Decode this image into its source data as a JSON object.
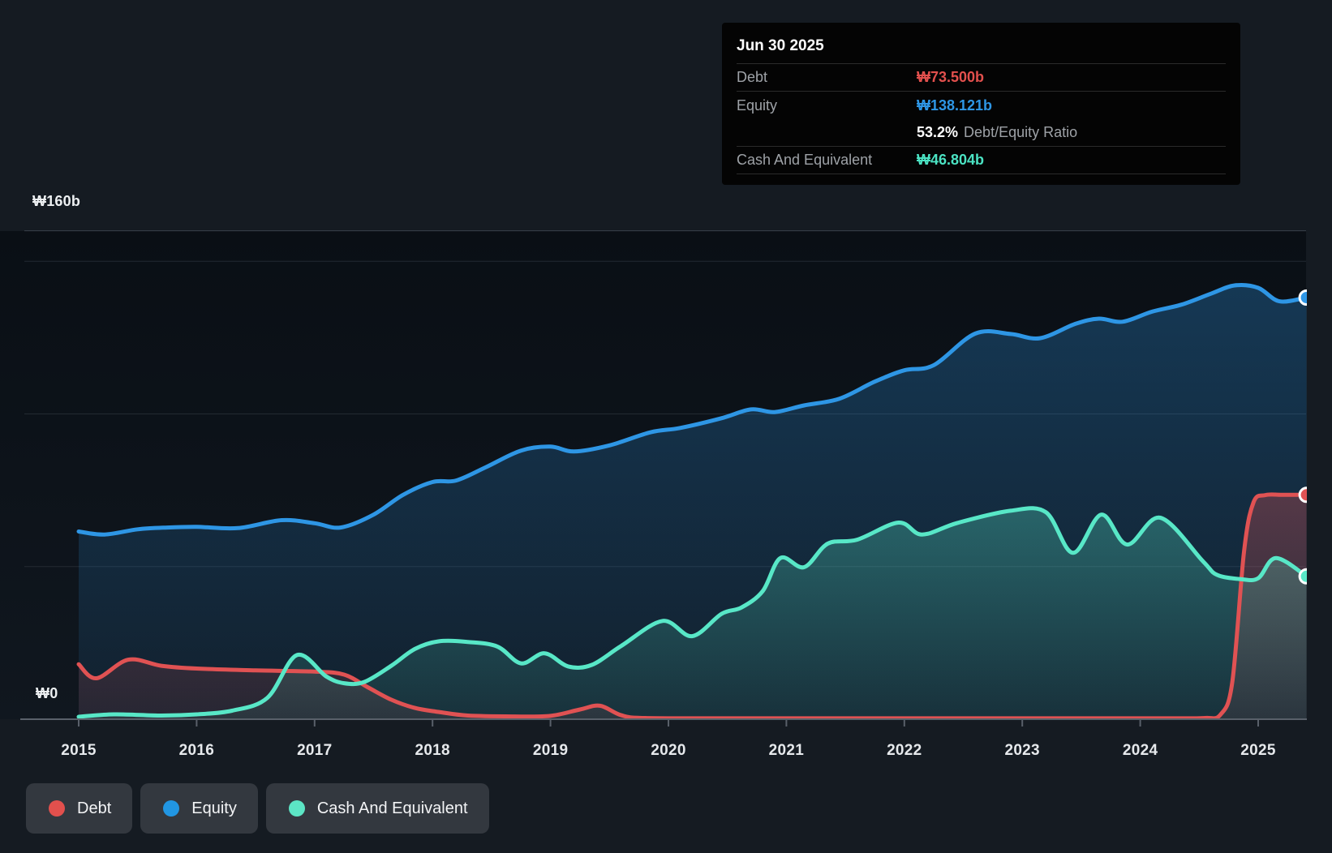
{
  "tooltip": {
    "date": "Jun 30 2025",
    "rows": [
      {
        "label": "Debt",
        "value": "₩73.500b",
        "color": "#E2504D",
        "suffix": "",
        "divided": true
      },
      {
        "label": "Equity",
        "value": "₩138.121b",
        "color": "#2E96E5",
        "suffix": "",
        "divided": false
      },
      {
        "label": "",
        "value": "53.2%",
        "color": "#FFFFFF",
        "suffix": "Debt/Equity Ratio",
        "divided": true
      },
      {
        "label": "Cash And Equivalent",
        "value": "₩46.804b",
        "color": "#4BE3C3",
        "suffix": "",
        "divided": true
      }
    ]
  },
  "y_axis": {
    "top_label": "₩160b",
    "zero_label": "₩0"
  },
  "x_axis": {
    "years": [
      "2015",
      "2016",
      "2017",
      "2018",
      "2019",
      "2020",
      "2021",
      "2022",
      "2023",
      "2024",
      "2025"
    ]
  },
  "legend": [
    {
      "label": "Debt",
      "color": "#E2504D"
    },
    {
      "label": "Equity",
      "color": "#2196E3"
    },
    {
      "label": "Cash And Equivalent",
      "color": "#5CE5C5"
    }
  ],
  "chart_data": {
    "type": "area",
    "title": "Debt to Equity History and Analysis",
    "unit": "billions KRW (₩b)",
    "x_range": [
      2015,
      2025.41
    ],
    "ylim": [
      0,
      160
    ],
    "y_gridlines_b": [
      160,
      150,
      100,
      50,
      0
    ],
    "grid": true,
    "legend_position": "bottom-left",
    "as_of": {
      "date": "Jun 30 2025",
      "debt_b": 73.5,
      "equity_b": 138.121,
      "debt_equity_ratio_pct": 53.2,
      "cash_b": 46.804
    },
    "series": [
      {
        "name": "Equity",
        "color": "#2E96E5",
        "points": [
          [
            2015.0,
            61.5
          ],
          [
            2015.22,
            60.5
          ],
          [
            2015.5,
            62.2
          ],
          [
            2015.75,
            62.8
          ],
          [
            2016.0,
            63.0
          ],
          [
            2016.35,
            62.6
          ],
          [
            2016.72,
            65.2
          ],
          [
            2017.0,
            64.2
          ],
          [
            2017.22,
            62.8
          ],
          [
            2017.5,
            67.0
          ],
          [
            2017.75,
            73.5
          ],
          [
            2018.0,
            77.7
          ],
          [
            2018.2,
            78.2
          ],
          [
            2018.45,
            82.5
          ],
          [
            2018.75,
            88.0
          ],
          [
            2019.0,
            89.3
          ],
          [
            2019.2,
            87.7
          ],
          [
            2019.5,
            89.7
          ],
          [
            2019.85,
            94.0
          ],
          [
            2020.1,
            95.4
          ],
          [
            2020.45,
            98.6
          ],
          [
            2020.7,
            101.5
          ],
          [
            2020.9,
            100.6
          ],
          [
            2021.15,
            102.8
          ],
          [
            2021.45,
            105.0
          ],
          [
            2021.75,
            110.6
          ],
          [
            2022.0,
            114.3
          ],
          [
            2022.25,
            116.0
          ],
          [
            2022.6,
            126.3
          ],
          [
            2022.9,
            126.2
          ],
          [
            2023.15,
            124.8
          ],
          [
            2023.45,
            129.5
          ],
          [
            2023.65,
            131.2
          ],
          [
            2023.85,
            130.2
          ],
          [
            2024.1,
            133.5
          ],
          [
            2024.35,
            135.8
          ],
          [
            2024.6,
            139.4
          ],
          [
            2024.8,
            142.1
          ],
          [
            2025.0,
            141.3
          ],
          [
            2025.18,
            136.9
          ],
          [
            2025.41,
            138.121
          ]
        ]
      },
      {
        "name": "Debt",
        "color": "#E05253",
        "points": [
          [
            2015.0,
            18.0
          ],
          [
            2015.15,
            13.4
          ],
          [
            2015.42,
            19.5
          ],
          [
            2015.7,
            17.5
          ],
          [
            2016.0,
            16.6
          ],
          [
            2016.5,
            16.0
          ],
          [
            2017.0,
            15.6
          ],
          [
            2017.25,
            14.6
          ],
          [
            2017.45,
            10.5
          ],
          [
            2017.65,
            6.4
          ],
          [
            2017.85,
            3.7
          ],
          [
            2018.05,
            2.4
          ],
          [
            2018.3,
            1.2
          ],
          [
            2018.7,
            0.9
          ],
          [
            2019.0,
            1.1
          ],
          [
            2019.25,
            3.2
          ],
          [
            2019.42,
            4.4
          ],
          [
            2019.6,
            1.3
          ],
          [
            2019.8,
            0.4
          ],
          [
            2020.5,
            0.3
          ],
          [
            2021.5,
            0.3
          ],
          [
            2022.5,
            0.3
          ],
          [
            2023.5,
            0.3
          ],
          [
            2024.3,
            0.3
          ],
          [
            2024.55,
            0.4
          ],
          [
            2024.68,
            1.5
          ],
          [
            2024.78,
            12.0
          ],
          [
            2024.88,
            55.0
          ],
          [
            2024.96,
            71.0
          ],
          [
            2025.06,
            73.4
          ],
          [
            2025.2,
            73.5
          ],
          [
            2025.41,
            73.5
          ]
        ]
      },
      {
        "name": "Cash And Equivalent",
        "color": "#58E7C7",
        "points": [
          [
            2015.0,
            0.8
          ],
          [
            2015.3,
            1.6
          ],
          [
            2015.7,
            1.2
          ],
          [
            2016.0,
            1.6
          ],
          [
            2016.3,
            2.8
          ],
          [
            2016.6,
            7.0
          ],
          [
            2016.85,
            21.0
          ],
          [
            2017.1,
            14.0
          ],
          [
            2017.25,
            11.8
          ],
          [
            2017.42,
            12.2
          ],
          [
            2017.65,
            17.5
          ],
          [
            2017.85,
            23.0
          ],
          [
            2018.05,
            25.5
          ],
          [
            2018.3,
            25.3
          ],
          [
            2018.55,
            23.8
          ],
          [
            2018.75,
            18.3
          ],
          [
            2018.95,
            21.6
          ],
          [
            2019.15,
            17.3
          ],
          [
            2019.35,
            17.8
          ],
          [
            2019.6,
            24.0
          ],
          [
            2019.95,
            32.2
          ],
          [
            2020.2,
            27.2
          ],
          [
            2020.45,
            34.5
          ],
          [
            2020.62,
            36.6
          ],
          [
            2020.8,
            42.0
          ],
          [
            2020.95,
            52.8
          ],
          [
            2021.15,
            49.8
          ],
          [
            2021.35,
            57.5
          ],
          [
            2021.6,
            58.8
          ],
          [
            2021.95,
            64.4
          ],
          [
            2022.15,
            60.5
          ],
          [
            2022.45,
            64.3
          ],
          [
            2022.9,
            68.3
          ],
          [
            2023.2,
            67.8
          ],
          [
            2023.43,
            54.5
          ],
          [
            2023.67,
            67.0
          ],
          [
            2023.89,
            57.2
          ],
          [
            2024.17,
            66.0
          ],
          [
            2024.53,
            51.8
          ],
          [
            2024.65,
            47.3
          ],
          [
            2024.85,
            45.9
          ],
          [
            2025.0,
            46.2
          ],
          [
            2025.15,
            52.8
          ],
          [
            2025.41,
            46.804
          ]
        ]
      }
    ]
  },
  "colors": {
    "background": "#151B22",
    "plot_top": "#0A0F15",
    "plot_bottom": "#10171F",
    "grid_major": "#3A414B",
    "grid_minor": "#232A32",
    "axis": "#59606A"
  }
}
